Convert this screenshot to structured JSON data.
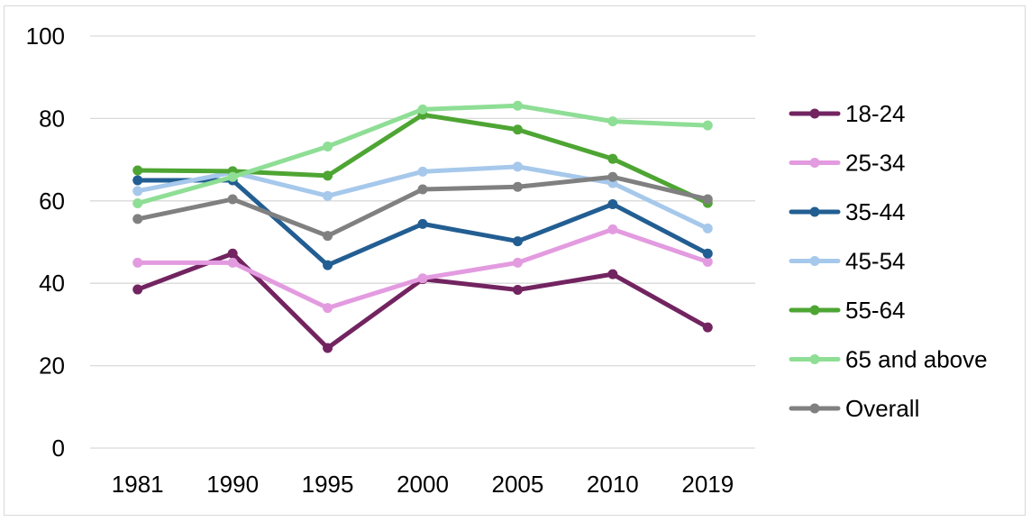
{
  "chart_data": {
    "type": "line",
    "title": "",
    "xlabel": "",
    "ylabel": "",
    "categories": [
      "1981",
      "1990",
      "1995",
      "2000",
      "2005",
      "2010",
      "2019"
    ],
    "ylim": [
      0,
      100
    ],
    "yticks": [
      0,
      20,
      40,
      60,
      80,
      100
    ],
    "grid": true,
    "legend_position": "right",
    "series": [
      {
        "name": "18-24",
        "color": "#722460",
        "values": [
          38.5,
          47.2,
          24.3,
          41.0,
          38.4,
          42.2,
          29.3
        ]
      },
      {
        "name": "25-34",
        "color": "#e39be0",
        "values": [
          45.0,
          45.0,
          34.0,
          41.2,
          45.0,
          53.1,
          45.2
        ]
      },
      {
        "name": "35-44",
        "color": "#225e92",
        "values": [
          65.0,
          65.0,
          44.4,
          54.4,
          50.2,
          59.2,
          47.2
        ]
      },
      {
        "name": "45-54",
        "color": "#a6c8eb",
        "values": [
          62.4,
          66.9,
          61.2,
          67.1,
          68.3,
          64.3,
          53.3
        ]
      },
      {
        "name": "55-64",
        "color": "#4ea533",
        "values": [
          67.4,
          67.2,
          66.1,
          80.9,
          77.3,
          70.2,
          59.5
        ]
      },
      {
        "name": "65 and above",
        "color": "#8ede95",
        "values": [
          59.4,
          65.8,
          73.2,
          82.2,
          83.1,
          79.3,
          78.3
        ]
      },
      {
        "name": "Overall",
        "color": "#808080",
        "values": [
          55.6,
          60.4,
          51.5,
          62.8,
          63.4,
          65.8,
          60.4
        ]
      }
    ]
  }
}
